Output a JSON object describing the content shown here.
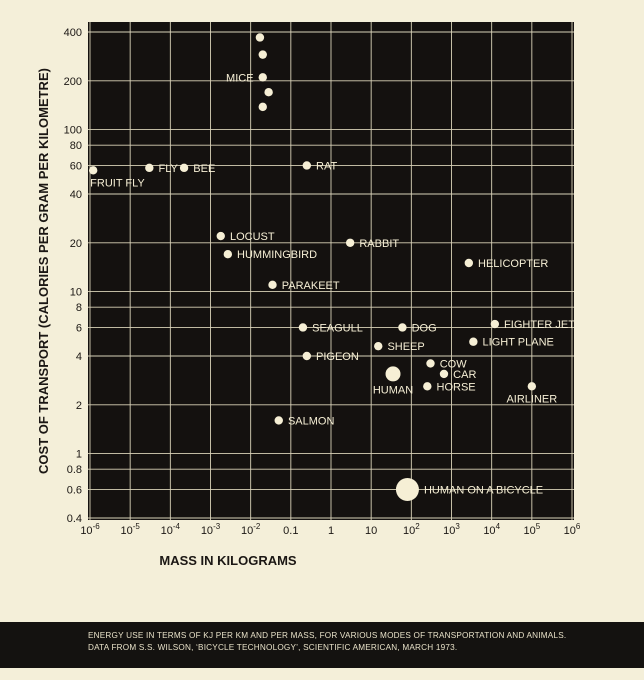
{
  "chart_data": {
    "type": "scatter",
    "x_scale": "log",
    "y_scale": "log",
    "xlim": [
      1e-06,
      1000000.0
    ],
    "ylim": [
      0.4,
      400
    ],
    "grid": true,
    "xlabel": "MASS IN KILOGRAMS",
    "ylabel": "COST OF TRANSPORT (CALORIES PER GRAM PER KILOMETRE)",
    "x_ticks": [
      {
        "value": 1e-06,
        "base": "10",
        "exp": "-6"
      },
      {
        "value": 1e-05,
        "base": "10",
        "exp": "-5"
      },
      {
        "value": 0.0001,
        "base": "10",
        "exp": "-4"
      },
      {
        "value": 0.001,
        "base": "10",
        "exp": "-3"
      },
      {
        "value": 0.01,
        "base": "10",
        "exp": "-2"
      },
      {
        "value": 0.1,
        "base": "0.1",
        "exp": ""
      },
      {
        "value": 1,
        "base": "1",
        "exp": ""
      },
      {
        "value": 10,
        "base": "10",
        "exp": ""
      },
      {
        "value": 100,
        "base": "10",
        "exp": "2"
      },
      {
        "value": 1000,
        "base": "10",
        "exp": "3"
      },
      {
        "value": 10000,
        "base": "10",
        "exp": "4"
      },
      {
        "value": 100000,
        "base": "10",
        "exp": "5"
      },
      {
        "value": 1000000,
        "base": "10",
        "exp": "6"
      }
    ],
    "y_ticks": [
      {
        "value": 0.4,
        "label": "0.4"
      },
      {
        "value": 0.6,
        "label": "0.6"
      },
      {
        "value": 0.8,
        "label": "0.8"
      },
      {
        "value": 1,
        "label": "1"
      },
      {
        "value": 2,
        "label": "2"
      },
      {
        "value": 4,
        "label": "4"
      },
      {
        "value": 6,
        "label": "6"
      },
      {
        "value": 8,
        "label": "8"
      },
      {
        "value": 10,
        "label": "10"
      },
      {
        "value": 20,
        "label": "20"
      },
      {
        "value": 40,
        "label": "40"
      },
      {
        "value": 60,
        "label": "60"
      },
      {
        "value": 80,
        "label": "80"
      },
      {
        "value": 100,
        "label": "100"
      },
      {
        "value": 200,
        "label": "200"
      },
      {
        "value": 400,
        "label": "400"
      }
    ],
    "points": [
      {
        "label": "",
        "x": 0.017,
        "y": 370,
        "size": "small",
        "label_pos": "none"
      },
      {
        "label": "",
        "x": 0.02,
        "y": 290,
        "size": "small",
        "label_pos": "none"
      },
      {
        "label": "MICE",
        "x": 0.02,
        "y": 210,
        "size": "small",
        "label_pos": "left"
      },
      {
        "label": "",
        "x": 0.028,
        "y": 170,
        "size": "small",
        "label_pos": "none"
      },
      {
        "label": "",
        "x": 0.02,
        "y": 138,
        "size": "small",
        "label_pos": "none"
      },
      {
        "label": "FRUIT FLY",
        "x": 1.2e-06,
        "y": 56,
        "size": "small",
        "label_pos": "below"
      },
      {
        "label": "FLY",
        "x": 3e-05,
        "y": 58,
        "size": "small",
        "label_pos": "right"
      },
      {
        "label": "BEE",
        "x": 0.00022,
        "y": 58,
        "size": "small",
        "label_pos": "right"
      },
      {
        "label": "RAT",
        "x": 0.25,
        "y": 60,
        "size": "small",
        "label_pos": "right"
      },
      {
        "label": "LOCUST",
        "x": 0.0018,
        "y": 22,
        "size": "small",
        "label_pos": "right"
      },
      {
        "label": "HUMMINGBIRD",
        "x": 0.0027,
        "y": 17,
        "size": "small",
        "label_pos": "right"
      },
      {
        "label": "RABBIT",
        "x": 3,
        "y": 20,
        "size": "small",
        "label_pos": "right"
      },
      {
        "label": "HELICOPTER",
        "x": 2700,
        "y": 15,
        "size": "small",
        "label_pos": "right"
      },
      {
        "label": "PARAKEET",
        "x": 0.035,
        "y": 11,
        "size": "small",
        "label_pos": "right"
      },
      {
        "label": "SEAGULL",
        "x": 0.2,
        "y": 6,
        "size": "small",
        "label_pos": "right"
      },
      {
        "label": "DOG",
        "x": 60,
        "y": 6,
        "size": "small",
        "label_pos": "right"
      },
      {
        "label": "FIGHTER JET",
        "x": 12000,
        "y": 6.3,
        "size": "small",
        "label_pos": "right"
      },
      {
        "label": "LIGHT PLANE",
        "x": 3500,
        "y": 4.9,
        "size": "small",
        "label_pos": "right"
      },
      {
        "label": "SHEEP",
        "x": 15,
        "y": 4.6,
        "size": "small",
        "label_pos": "right"
      },
      {
        "label": "PIGEON",
        "x": 0.25,
        "y": 4,
        "size": "small",
        "label_pos": "right"
      },
      {
        "label": "COW",
        "x": 300,
        "y": 3.6,
        "size": "small",
        "label_pos": "right"
      },
      {
        "label": "HUMAN",
        "x": 35,
        "y": 3.1,
        "size": "medium",
        "label_pos": "below"
      },
      {
        "label": "CAR",
        "x": 650,
        "y": 3.1,
        "size": "small",
        "label_pos": "right"
      },
      {
        "label": "HORSE",
        "x": 250,
        "y": 2.6,
        "size": "small",
        "label_pos": "right"
      },
      {
        "label": "AIRLINER",
        "x": 100000,
        "y": 2.6,
        "size": "small",
        "label_pos": "below"
      },
      {
        "label": "SALMON",
        "x": 0.05,
        "y": 1.6,
        "size": "small",
        "label_pos": "right"
      },
      {
        "label": "HUMAN ON A BICYCLE",
        "x": 80,
        "y": 0.6,
        "size": "large",
        "label_pos": "right"
      }
    ]
  },
  "caption": {
    "line1": "ENERGY USE IN TERMS OF KJ PER KM AND PER MASS, FOR VARIOUS MODES OF TRANSPORTATION AND ANIMALS.",
    "line2": "DATA FROM S.S. WILSON, ‘BICYCLE TECHNOLOGY’, SCIENTIFIC AMERICAN, MARCH 1973."
  },
  "colors": {
    "background": "#f4efd9",
    "plot_area": "#14110f",
    "grid": "#d9d2b8",
    "marker": "#f6efd5",
    "point_label": "#f6efd5",
    "axis_text": "#1b1714"
  }
}
